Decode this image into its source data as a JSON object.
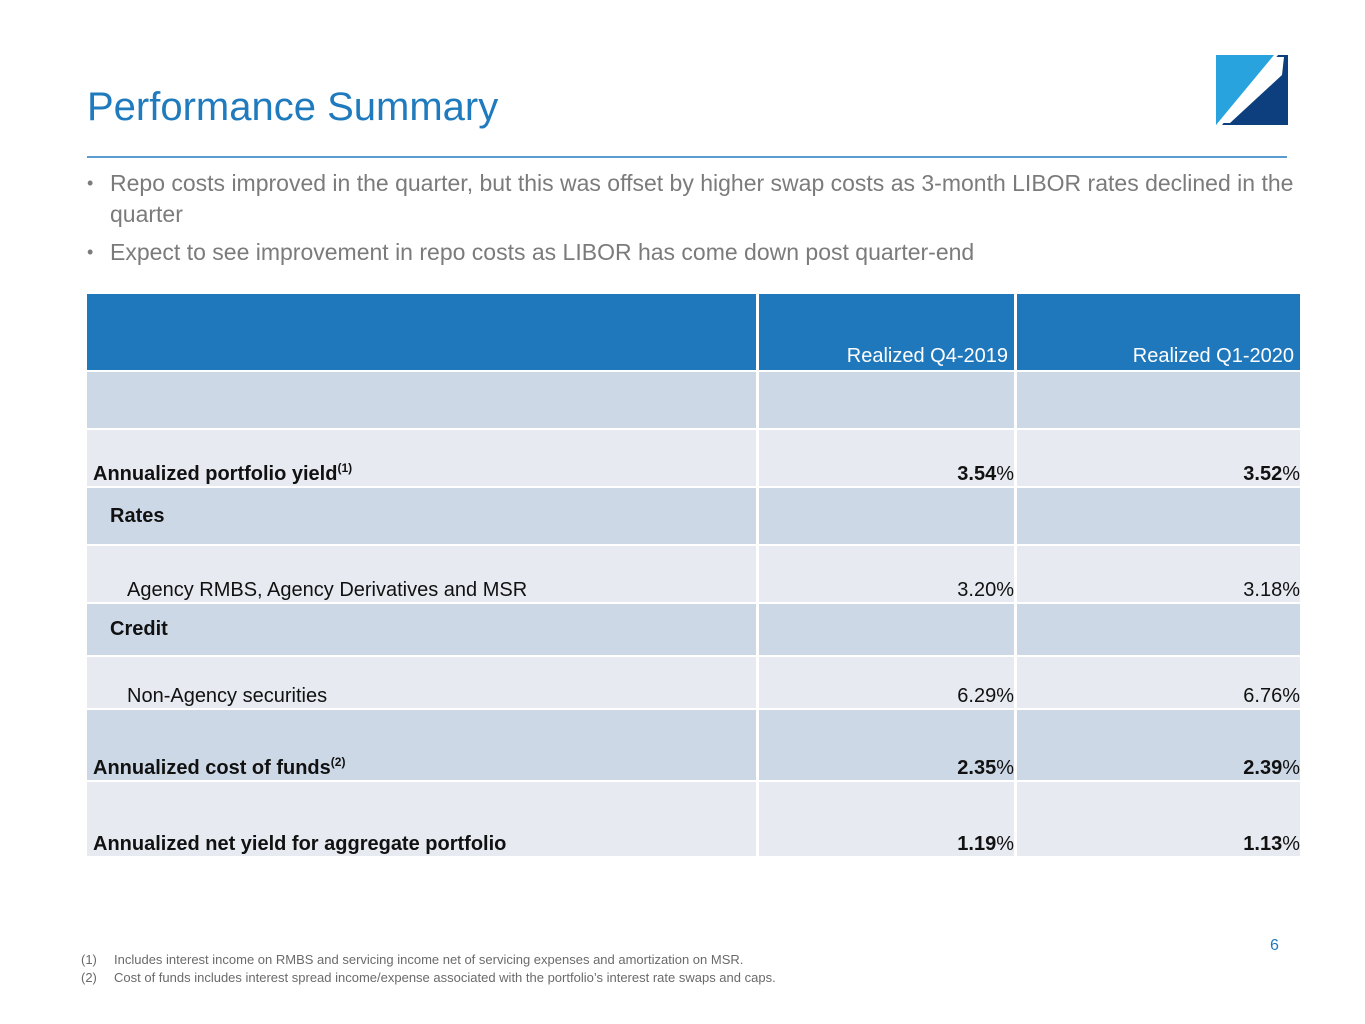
{
  "title": "Performance Summary",
  "bullets": [
    "Repo costs improved in the quarter, but this was offset by higher swap costs as 3-month LIBOR rates declined in the quarter",
    "Expect to see improvement in repo costs as LIBOR has come down post quarter-end"
  ],
  "bullet_glyph": "•",
  "table": {
    "headers": [
      "",
      "Realized Q4-2019",
      "Realized Q1-2020"
    ],
    "rows": {
      "portfolio_yield": {
        "label": "Annualized portfolio yield",
        "sup": "(1)",
        "q4": "3.54",
        "q1": "3.52"
      },
      "rates": {
        "label": "Rates"
      },
      "agency": {
        "label": "Agency RMBS, Agency Derivatives and MSR",
        "q4": "3.20%",
        "q1": "3.18%"
      },
      "credit": {
        "label": "Credit"
      },
      "non_agency": {
        "label": "Non-Agency securities",
        "q4": "6.29%",
        "q1": "6.76%"
      },
      "cost_of_funds": {
        "label": "Annualized cost of funds",
        "sup": "(2)",
        "q4": "2.35",
        "q1": "2.39"
      },
      "net_yield": {
        "label": "Annualized net yield for aggregate portfolio",
        "q4": "1.19",
        "q1": "1.13"
      }
    },
    "pct_symbol": "%"
  },
  "page_number": "6",
  "footnotes": [
    {
      "marker": "(1)",
      "text": "Includes interest income on RMBS and servicing income net of servicing expenses and amortization on MSR."
    },
    {
      "marker": "(2)",
      "text": "Cost of funds includes interest spread income/expense associated with the portfolio’s interest rate swaps and caps."
    }
  ],
  "colors": {
    "title": "#1f7bbd",
    "header_fill": "#1f78bc",
    "row_dark": "#cdd8e7",
    "row_light": "#e7ebf1",
    "logo_light": "#29a3dd",
    "logo_dark": "#0d3f7f"
  }
}
